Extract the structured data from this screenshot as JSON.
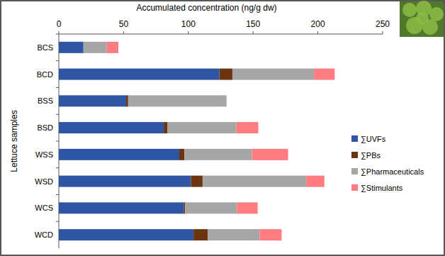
{
  "chart_data": {
    "type": "bar",
    "orientation": "horizontal",
    "stacked": true,
    "x_label": "Accumulated concentration (ng/g dw)",
    "y_label": "Lettuce samples",
    "categories": [
      "BCS",
      "BCD",
      "BSS",
      "BSD",
      "WSS",
      "WSD",
      "WCS",
      "WCD"
    ],
    "series": [
      {
        "name": "∑UVFs",
        "color": "#2f55a4",
        "values": [
          19,
          124,
          52,
          81,
          93,
          102,
          96.5,
          104
        ]
      },
      {
        "name": "∑PBs",
        "color": "#6b3510",
        "values": [
          0,
          10,
          1.5,
          3,
          4,
          9,
          1,
          11
        ]
      },
      {
        "name": "∑Pharmaceuticals",
        "color": "#a6a6a6",
        "values": [
          18,
          63,
          76,
          53,
          52,
          80,
          40,
          40
        ]
      },
      {
        "name": "∑Stimulants",
        "color": "#ff7c80",
        "values": [
          9,
          16,
          0,
          17,
          28,
          14,
          16,
          17
        ]
      }
    ],
    "xlim": [
      0,
      250
    ],
    "xticks": [
      0,
      50,
      100,
      150,
      200,
      250
    ],
    "grid": false,
    "legend": "right"
  }
}
